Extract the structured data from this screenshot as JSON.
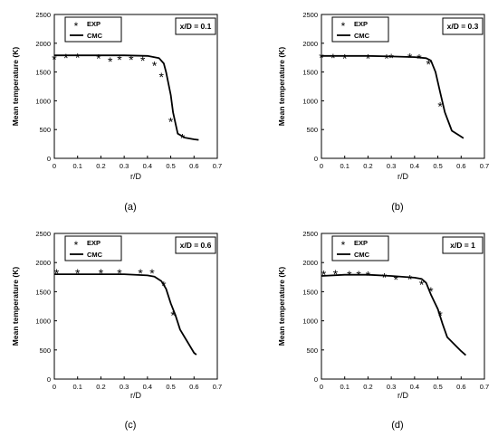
{
  "chart_data": [
    {
      "type": "line",
      "panel_label": "(a)",
      "annotation": "x/D = 0.1",
      "xlabel": "r/D",
      "ylabel": "Mean temperature (K)",
      "xlim": [
        0,
        0.7
      ],
      "ylim": [
        0,
        2500
      ],
      "xticks": [
        "0",
        "0.1",
        "0.2",
        "0.3",
        "0.4",
        "0.5",
        "0.6",
        "0.7"
      ],
      "yticks": [
        "0",
        "500",
        "1000",
        "1500",
        "2000",
        "2500"
      ],
      "legend": [
        "EXP",
        "CMC"
      ],
      "legend_position": "top-left",
      "series": [
        {
          "name": "EXP",
          "marker": "*",
          "x": [
            0,
            0.05,
            0.1,
            0.19,
            0.24,
            0.28,
            0.33,
            0.38,
            0.43,
            0.46,
            0.5,
            0.55
          ],
          "y": [
            1740,
            1760,
            1770,
            1750,
            1700,
            1730,
            1730,
            1710,
            1630,
            1430,
            650,
            370
          ]
        },
        {
          "name": "CMC",
          "x": [
            0,
            0.1,
            0.2,
            0.3,
            0.4,
            0.45,
            0.47,
            0.48,
            0.5,
            0.51,
            0.53,
            0.56,
            0.6,
            0.62
          ],
          "y": [
            1790,
            1790,
            1790,
            1790,
            1780,
            1740,
            1650,
            1500,
            1100,
            800,
            430,
            360,
            330,
            320
          ]
        }
      ]
    },
    {
      "type": "line",
      "panel_label": "(b)",
      "annotation": "x/D = 0.3",
      "xlabel": "r/D",
      "ylabel": "Mean temperature (K)",
      "xlim": [
        0,
        0.7
      ],
      "ylim": [
        0,
        2500
      ],
      "xticks": [
        "0",
        "0.1",
        "0.2",
        "0.3",
        "0.4",
        "0.5",
        "0.6",
        "0.7"
      ],
      "yticks": [
        "0",
        "500",
        "1000",
        "1500",
        "2000",
        "2500"
      ],
      "legend": [
        "EXP",
        "CMC"
      ],
      "legend_position": "top-left",
      "series": [
        {
          "name": "EXP",
          "marker": "*",
          "x": [
            0,
            0.05,
            0.1,
            0.2,
            0.28,
            0.3,
            0.38,
            0.42,
            0.46,
            0.51
          ],
          "y": [
            1770,
            1760,
            1750,
            1750,
            1750,
            1760,
            1770,
            1750,
            1650,
            920
          ]
        },
        {
          "name": "CMC",
          "x": [
            0,
            0.1,
            0.2,
            0.3,
            0.4,
            0.45,
            0.47,
            0.49,
            0.51,
            0.53,
            0.56,
            0.61
          ],
          "y": [
            1780,
            1780,
            1780,
            1770,
            1760,
            1740,
            1700,
            1500,
            1150,
            800,
            480,
            350
          ]
        }
      ]
    },
    {
      "type": "line",
      "panel_label": "(c)",
      "annotation": "x/D = 0.6",
      "xlabel": "r/D",
      "ylabel": "Mean temperature (K)",
      "xlim": [
        0,
        0.7
      ],
      "ylim": [
        0,
        2500
      ],
      "xticks": [
        "0",
        "0.1",
        "0.2",
        "0.3",
        "0.4",
        "0.5",
        "0.6",
        "0.7"
      ],
      "yticks": [
        "0",
        "500",
        "1000",
        "1500",
        "2000",
        "2500"
      ],
      "legend": [
        "EXP",
        "CMC"
      ],
      "legend_position": "top-left",
      "series": [
        {
          "name": "EXP",
          "marker": "*",
          "x": [
            0.01,
            0.1,
            0.2,
            0.28,
            0.37,
            0.42,
            0.47,
            0.51
          ],
          "y": [
            1830,
            1830,
            1830,
            1830,
            1830,
            1830,
            1620,
            1110
          ]
        },
        {
          "name": "CMC",
          "x": [
            0,
            0.1,
            0.2,
            0.3,
            0.4,
            0.43,
            0.46,
            0.48,
            0.5,
            0.52,
            0.54,
            0.57,
            0.6,
            0.61
          ],
          "y": [
            1800,
            1800,
            1800,
            1800,
            1780,
            1760,
            1680,
            1550,
            1300,
            1100,
            850,
            650,
            450,
            420
          ]
        }
      ]
    },
    {
      "type": "line",
      "panel_label": "(d)",
      "annotation": "x/D = 1",
      "xlabel": "r/D",
      "ylabel": "Mean temperature (K)",
      "xlim": [
        0,
        0.7
      ],
      "ylim": [
        0,
        2500
      ],
      "xticks": [
        "0",
        "0.1",
        "0.2",
        "0.3",
        "0.4",
        "0.5",
        "0.6",
        "0.7"
      ],
      "yticks": [
        "0",
        "500",
        "1000",
        "1500",
        "2000",
        "2500"
      ],
      "legend": [
        "EXP",
        "CMC"
      ],
      "legend_position": "top-left",
      "series": [
        {
          "name": "EXP",
          "marker": "*",
          "x": [
            0.01,
            0.06,
            0.12,
            0.16,
            0.2,
            0.27,
            0.32,
            0.38,
            0.43,
            0.47,
            0.51
          ],
          "y": [
            1810,
            1820,
            1800,
            1800,
            1790,
            1760,
            1720,
            1730,
            1640,
            1520,
            1110
          ]
        },
        {
          "name": "CMC",
          "x": [
            0,
            0.1,
            0.2,
            0.3,
            0.4,
            0.43,
            0.45,
            0.47,
            0.5,
            0.52,
            0.54,
            0.57,
            0.6,
            0.62
          ],
          "y": [
            1770,
            1790,
            1790,
            1770,
            1740,
            1720,
            1650,
            1450,
            1200,
            950,
            720,
            600,
            480,
            410
          ]
        }
      ]
    }
  ]
}
